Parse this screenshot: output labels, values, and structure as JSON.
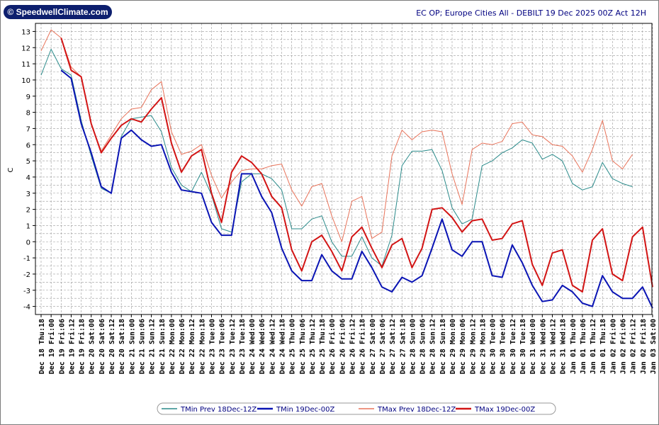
{
  "logo": {
    "text": "© SpeedwellClimate.com"
  },
  "chart_data": {
    "type": "line",
    "title": "EC OP; Europe Cities All - DEBILT 19 Dec 2025 00Z Act 12H",
    "ylabel": "C",
    "xlabel": "",
    "ylim": [
      -4.5,
      13.5
    ],
    "yticks": [
      -4,
      -3,
      -2,
      -1,
      0,
      1,
      2,
      3,
      4,
      5,
      6,
      7,
      8,
      9,
      10,
      11,
      12,
      13
    ],
    "categories": [
      "Dec 18 Thu:18",
      "Dec 19 Fri:00",
      "Dec 19 Fri:06",
      "Dec 19 Fri:12",
      "Dec 19 Fri:18",
      "Dec 20 Sat:00",
      "Dec 20 Sat:06",
      "Dec 20 Sat:12",
      "Dec 20 Sat:18",
      "Dec 21 Sun:00",
      "Dec 21 Sun:06",
      "Dec 21 Sun:12",
      "Dec 21 Sun:18",
      "Dec 22 Mon:00",
      "Dec 22 Mon:06",
      "Dec 22 Mon:12",
      "Dec 22 Mon:18",
      "Dec 23 Tue:00",
      "Dec 23 Tue:06",
      "Dec 23 Tue:12",
      "Dec 23 Tue:18",
      "Dec 24 Wed:00",
      "Dec 24 Wed:06",
      "Dec 24 Wed:12",
      "Dec 24 Wed:18",
      "Dec 25 Thu:00",
      "Dec 25 Thu:06",
      "Dec 25 Thu:12",
      "Dec 25 Thu:18",
      "Dec 26 Fri:00",
      "Dec 26 Fri:06",
      "Dec 26 Fri:12",
      "Dec 26 Fri:18",
      "Dec 27 Sat:00",
      "Dec 27 Sat:06",
      "Dec 27 Sat:12",
      "Dec 27 Sat:18",
      "Dec 28 Sun:00",
      "Dec 28 Sun:06",
      "Dec 28 Sun:12",
      "Dec 28 Sun:18",
      "Dec 29 Mon:00",
      "Dec 29 Mon:06",
      "Dec 29 Mon:12",
      "Dec 29 Mon:18",
      "Dec 30 Tue:00",
      "Dec 30 Tue:06",
      "Dec 30 Tue:12",
      "Dec 30 Tue:18",
      "Dec 31 Wed:00",
      "Dec 31 Wed:06",
      "Dec 31 Wed:12",
      "Dec 31 Wed:18",
      "Jan 01 Thu:00",
      "Jan 01 Thu:06",
      "Jan 01 Thu:12",
      "Jan 01 Thu:18",
      "Jan 02 Fri:00",
      "Jan 02 Fri:06",
      "Jan 02 Fri:12",
      "Jan 02 Fri:18",
      "Jan 03 Sat:00"
    ],
    "series": [
      {
        "name": "TMin Prev 18Dec-12Z",
        "color": "#2a8a8a",
        "width": 1,
        "values": [
          10.3,
          11.9,
          10.7,
          10.3,
          7.5,
          5.3,
          3.3,
          3.0,
          6.5,
          7.6,
          7.7,
          7.8,
          6.8,
          4.6,
          3.5,
          3.1,
          4.3,
          2.9,
          0.8,
          0.6,
          3.7,
          4.2,
          4.2,
          3.9,
          3.2,
          0.8,
          0.8,
          1.4,
          1.6,
          0.0,
          -0.9,
          -0.9,
          0.3,
          -1.0,
          -1.5,
          0.4,
          4.7,
          5.6,
          5.6,
          5.7,
          4.4,
          2.1,
          1.1,
          1.4,
          4.7,
          5.0,
          5.5,
          5.8,
          6.3,
          6.1,
          5.1,
          5.4,
          5.0,
          3.6,
          3.2,
          3.4,
          4.9,
          3.9,
          3.6,
          3.4,
          null,
          null
        ]
      },
      {
        "name": "TMin 19Dec-00Z",
        "color": "#0a14b4",
        "width": 2,
        "values": [
          null,
          null,
          10.6,
          10.1,
          7.3,
          5.5,
          3.4,
          3.0,
          6.4,
          6.9,
          6.3,
          5.9,
          6.0,
          4.3,
          3.2,
          3.1,
          3.0,
          1.2,
          0.4,
          0.4,
          4.2,
          4.2,
          2.8,
          1.8,
          -0.4,
          -1.8,
          -2.4,
          -2.4,
          -0.8,
          -1.8,
          -2.3,
          -2.3,
          -0.6,
          -1.6,
          -2.8,
          -3.1,
          -2.2,
          -2.5,
          -2.1,
          -0.4,
          1.4,
          -0.5,
          -0.9,
          0.0,
          0.0,
          -2.1,
          -2.2,
          -0.2,
          -1.3,
          -2.7,
          -3.7,
          -3.6,
          -2.7,
          -3.1,
          -3.8,
          -4.0,
          -2.1,
          -3.1,
          -3.5,
          -3.5,
          -2.8,
          -4.1
        ]
      },
      {
        "name": "TMax Prev 18Dec-12Z",
        "color": "#e8735a",
        "width": 1,
        "values": [
          11.8,
          13.1,
          12.6,
          10.8,
          10.2,
          7.3,
          5.6,
          6.6,
          7.6,
          8.2,
          8.3,
          9.4,
          9.9,
          6.8,
          5.4,
          5.6,
          6.0,
          4.1,
          2.7,
          3.7,
          4.4,
          4.5,
          4.5,
          4.7,
          4.8,
          3.2,
          2.2,
          3.4,
          3.6,
          1.6,
          0.0,
          2.5,
          2.8,
          0.2,
          0.6,
          5.3,
          6.9,
          6.3,
          6.8,
          6.9,
          6.8,
          4.2,
          2.3,
          5.7,
          6.1,
          6.0,
          6.2,
          7.3,
          7.4,
          6.6,
          6.5,
          6.0,
          5.9,
          5.3,
          4.3,
          5.7,
          7.5,
          5.0,
          4.5,
          5.4,
          null,
          null
        ]
      },
      {
        "name": "TMax 19Dec-00Z",
        "color": "#d21414",
        "width": 2,
        "values": [
          null,
          null,
          12.6,
          10.6,
          10.2,
          7.3,
          5.5,
          6.4,
          7.2,
          7.6,
          7.4,
          8.2,
          8.9,
          6.1,
          4.3,
          5.3,
          5.7,
          3.0,
          1.2,
          4.3,
          5.3,
          4.9,
          4.2,
          2.8,
          2.1,
          -0.5,
          -1.8,
          0.0,
          0.4,
          -0.6,
          -1.8,
          0.3,
          0.9,
          -0.4,
          -1.6,
          -0.2,
          0.2,
          -1.6,
          -0.4,
          2.0,
          2.1,
          1.5,
          0.6,
          1.3,
          1.4,
          0.1,
          0.2,
          1.1,
          1.3,
          -1.4,
          -2.7,
          -0.7,
          -0.5,
          -2.7,
          -3.1,
          0.1,
          0.8,
          -2.0,
          -2.4,
          0.3,
          0.9,
          -2.8
        ]
      }
    ],
    "legend_position": "bottom-center",
    "grid": true
  }
}
